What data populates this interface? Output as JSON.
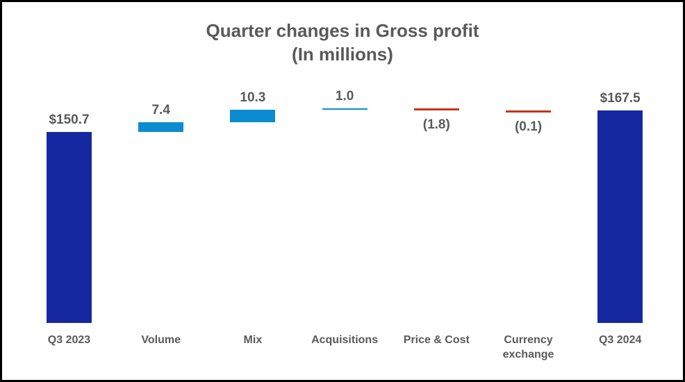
{
  "title": {
    "line1": "Quarter changes in Gross profit",
    "line2": "(In millions)"
  },
  "chart_data": {
    "type": "bar",
    "subtype": "waterfall",
    "title": "Quarter changes in Gross profit (In millions)",
    "categories": [
      "Q3 2023",
      "Volume",
      "Mix",
      "Acquisitions",
      "Price & Cost",
      "Currency exchange",
      "Q3 2024"
    ],
    "values": [
      150.7,
      7.4,
      10.3,
      1.0,
      -1.8,
      -0.1,
      167.5
    ],
    "bar_types": [
      "total",
      "increase",
      "increase",
      "increase",
      "decrease",
      "decrease",
      "total"
    ],
    "data_labels": [
      "$150.7",
      "7.4",
      "10.3",
      "1.0",
      "(1.8)",
      "(0.1)",
      "$167.5"
    ],
    "label_positions": [
      "above",
      "above",
      "above",
      "above",
      "below",
      "below",
      "above"
    ],
    "colors": {
      "total": "#16289F",
      "increase": "#0B8CCE",
      "decrease": "#C63512",
      "text": "#595959"
    },
    "xlabel": "",
    "ylabel": "",
    "ylim": [
      0,
      180
    ],
    "grid": false,
    "axis_lines": false,
    "legend": false
  }
}
